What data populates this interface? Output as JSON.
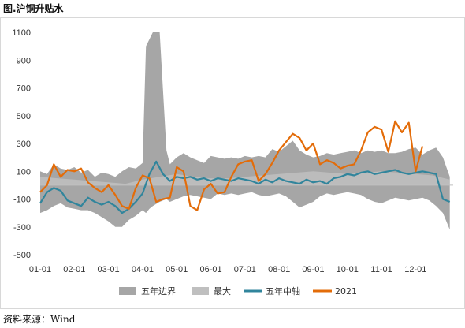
{
  "figure_title": "图.沪铜升贴水",
  "source": "资料来源：Wind",
  "colors": {
    "band": "#a6a6a6",
    "max": "#bfbfbf",
    "median": "#31859c",
    "y2021": "#e36c09",
    "zero": "#bfbfbf"
  },
  "chart_data": {
    "type": "line",
    "title": "",
    "xlabel": "",
    "ylabel": "",
    "ylim": [
      -500,
      1100
    ],
    "yticks": [
      -500,
      -300,
      -100,
      100,
      300,
      500,
      700,
      900,
      1100
    ],
    "ytick_labels": [
      "-500",
      "-300",
      "-100",
      "100",
      "300",
      "500",
      "700",
      "900",
      "1100"
    ],
    "xlim": [
      0,
      12.1
    ],
    "xticks": [
      0,
      1,
      2,
      3,
      4,
      5,
      6,
      7,
      8,
      9,
      10,
      11
    ],
    "xtick_labels": [
      "01-01",
      "02-01",
      "03-01",
      "04-01",
      "05-01",
      "06-01",
      "07-01",
      "08-01",
      "09-01",
      "10-01",
      "11-01",
      "12-01"
    ],
    "grid": false,
    "legend_position": "bottom",
    "series": [
      {
        "name": "五年边界",
        "kind": "band",
        "x": [
          0,
          0.2,
          0.4,
          0.6,
          0.8,
          1.0,
          1.2,
          1.4,
          1.6,
          1.8,
          2.0,
          2.2,
          2.4,
          2.6,
          2.8,
          3.0,
          3.1,
          3.2,
          3.3,
          3.5,
          3.7,
          3.8,
          4.0,
          4.2,
          4.4,
          4.6,
          4.8,
          5.0,
          5.2,
          5.4,
          5.6,
          5.8,
          6.0,
          6.2,
          6.4,
          6.6,
          6.8,
          7.0,
          7.2,
          7.4,
          7.6,
          7.8,
          8.0,
          8.2,
          8.4,
          8.6,
          8.8,
          9.0,
          9.2,
          9.4,
          9.6,
          9.8,
          10.0,
          10.2,
          10.4,
          10.6,
          10.8,
          11.0,
          11.2,
          11.4,
          11.6,
          11.8,
          12.0
        ],
        "upper": [
          100,
          80,
          150,
          120,
          110,
          130,
          90,
          110,
          60,
          90,
          80,
          60,
          100,
          130,
          120,
          160,
          1000,
          1050,
          1100,
          1100,
          250,
          150,
          200,
          230,
          200,
          180,
          160,
          210,
          200,
          190,
          200,
          190,
          210,
          200,
          210,
          200,
          260,
          240,
          280,
          320,
          250,
          220,
          200,
          210,
          230,
          220,
          230,
          240,
          250,
          230,
          250,
          240,
          250,
          230,
          230,
          240,
          260,
          270,
          220,
          250,
          270,
          200,
          60
        ],
        "lower": [
          -200,
          -180,
          -150,
          -130,
          -160,
          -170,
          -180,
          -180,
          -200,
          -230,
          -260,
          -300,
          -300,
          -250,
          -220,
          -180,
          -200,
          -170,
          -150,
          -120,
          -100,
          -120,
          -100,
          -80,
          -70,
          -80,
          -90,
          -100,
          -60,
          -70,
          -60,
          -70,
          -60,
          -50,
          -70,
          -80,
          -70,
          -60,
          -80,
          -120,
          -160,
          -140,
          -120,
          -80,
          -60,
          -70,
          -60,
          -50,
          -60,
          -70,
          -100,
          -120,
          -130,
          -110,
          -90,
          -100,
          -110,
          -100,
          -90,
          -110,
          -150,
          -200,
          -320
        ]
      },
      {
        "name": "最大",
        "kind": "area",
        "x": [
          0,
          0.5,
          1.0,
          1.5,
          2.0,
          2.5,
          3.0,
          3.5,
          4.0,
          4.5,
          5.0,
          5.5,
          6.0,
          6.5,
          7.0,
          7.5,
          8.0,
          8.5,
          9.0,
          9.5,
          10.0,
          10.5,
          11.0,
          11.5,
          12.0
        ],
        "values": [
          60,
          50,
          40,
          30,
          20,
          10,
          40,
          60,
          80,
          60,
          50,
          50,
          60,
          70,
          80,
          90,
          100,
          90,
          80,
          90,
          100,
          90,
          80,
          70,
          40
        ]
      },
      {
        "name": "五年中轴",
        "kind": "line",
        "x": [
          0,
          0.2,
          0.4,
          0.6,
          0.8,
          1.0,
          1.2,
          1.4,
          1.6,
          1.8,
          2.0,
          2.2,
          2.4,
          2.6,
          2.8,
          3.0,
          3.2,
          3.4,
          3.6,
          3.8,
          4.0,
          4.2,
          4.4,
          4.6,
          4.8,
          5.0,
          5.2,
          5.4,
          5.6,
          5.8,
          6.0,
          6.2,
          6.4,
          6.6,
          6.8,
          7.0,
          7.2,
          7.4,
          7.6,
          7.8,
          8.0,
          8.2,
          8.4,
          8.6,
          8.8,
          9.0,
          9.2,
          9.4,
          9.6,
          9.8,
          10.0,
          10.2,
          10.4,
          10.6,
          10.8,
          11.0,
          11.2,
          11.4,
          11.6,
          11.8,
          12.0
        ],
        "values": [
          -130,
          -50,
          -20,
          -40,
          -110,
          -130,
          -150,
          -90,
          -120,
          -140,
          -120,
          -150,
          -200,
          -170,
          -120,
          -60,
          80,
          170,
          80,
          30,
          60,
          50,
          60,
          40,
          50,
          30,
          50,
          40,
          30,
          50,
          40,
          30,
          10,
          40,
          20,
          50,
          30,
          20,
          10,
          40,
          20,
          30,
          10,
          50,
          60,
          80,
          70,
          90,
          100,
          80,
          90,
          100,
          110,
          90,
          80,
          90,
          100,
          90,
          80,
          -100,
          -120
        ]
      },
      {
        "name": "2021",
        "kind": "line",
        "x": [
          0,
          0.2,
          0.4,
          0.6,
          0.8,
          1.0,
          1.2,
          1.4,
          1.6,
          1.8,
          2.0,
          2.2,
          2.4,
          2.6,
          2.8,
          3.0,
          3.2,
          3.4,
          3.6,
          3.8,
          4.0,
          4.2,
          4.4,
          4.6,
          4.8,
          5.0,
          5.2,
          5.4,
          5.6,
          5.8,
          6.0,
          6.2,
          6.4,
          6.6,
          6.8,
          7.0,
          7.2,
          7.4,
          7.6,
          7.8,
          8.0,
          8.2,
          8.4,
          8.6,
          8.8,
          9.0,
          9.2,
          9.4,
          9.6,
          9.8,
          10.0,
          10.2,
          10.4,
          10.6,
          10.8,
          11.0,
          11.2
        ],
        "values": [
          -50,
          0,
          150,
          60,
          110,
          100,
          120,
          20,
          -20,
          -50,
          0,
          -70,
          -150,
          -170,
          -20,
          70,
          50,
          -120,
          -100,
          -90,
          130,
          100,
          -150,
          -180,
          -30,
          10,
          -60,
          -50,
          60,
          150,
          170,
          180,
          30,
          80,
          160,
          250,
          310,
          370,
          340,
          250,
          300,
          150,
          180,
          160,
          120,
          140,
          150,
          250,
          380,
          420,
          400,
          240,
          460,
          380,
          450,
          100,
          280
        ]
      }
    ]
  }
}
